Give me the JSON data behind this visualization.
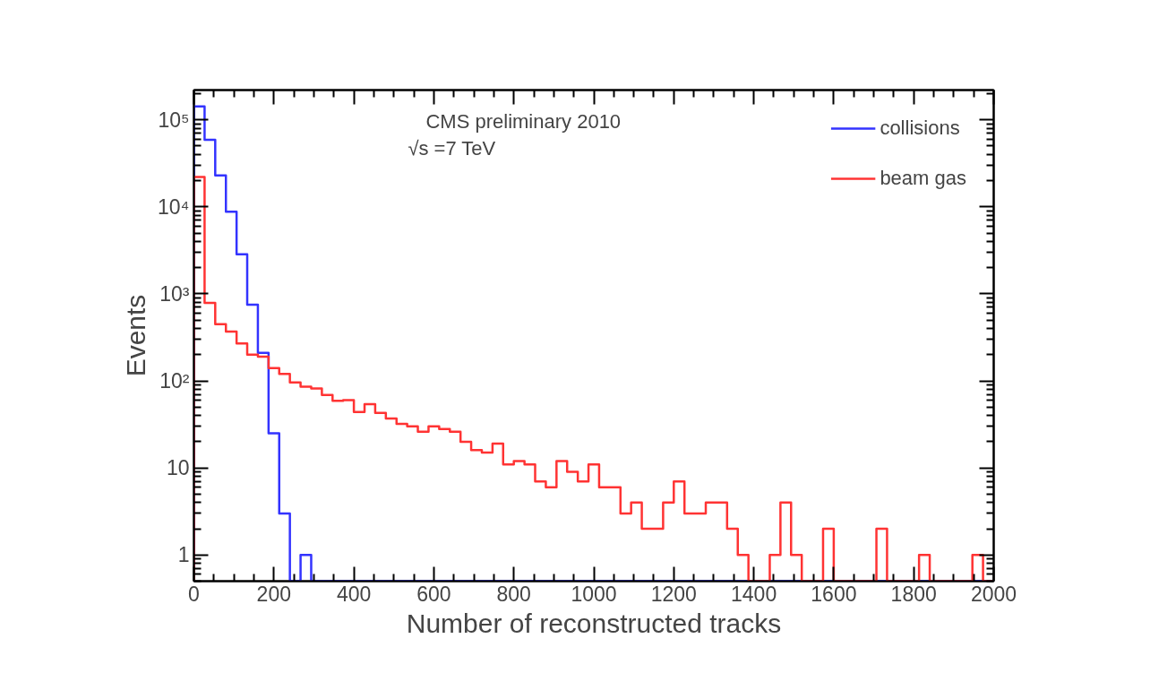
{
  "chart_data": {
    "type": "histogram",
    "xlabel": "Number of reconstructed tracks",
    "ylabel": "Events",
    "annotations": [
      "CMS preliminary 2010",
      "√s =7 TeV"
    ],
    "bins": [
      0,
      26.7,
      53.3,
      80,
      106.7,
      133.3,
      160,
      186.7,
      213.3,
      240,
      266.7,
      293.3,
      320,
      346.7,
      373.3,
      400,
      426.7,
      453.3,
      480,
      506.7,
      533.3,
      560,
      586.7,
      613.3,
      640,
      666.7,
      693.3,
      720,
      746.7,
      773.3,
      800,
      826.7,
      853.3,
      880,
      906.7,
      933.3,
      960,
      986.7,
      1013.3,
      1040,
      1066.7,
      1093.3,
      1120,
      1146.7,
      1173.3,
      1200,
      1226.7,
      1253.3,
      1280,
      1306.7,
      1333.3,
      1360,
      1386.7,
      1413.3,
      1440,
      1466.7,
      1493.3,
      1520,
      1546.7,
      1573.3,
      1600,
      1626.7,
      1653.3,
      1680,
      1706.7,
      1733.3,
      1760,
      1786.7,
      1813.3,
      1840,
      1866.7,
      1893.3,
      1920,
      1946.7,
      1973.3,
      2000
    ],
    "series": [
      {
        "name": "collisions",
        "color": "#3333ff",
        "values": [
          143000,
          59000,
          23000,
          8800,
          2850,
          750,
          210,
          25,
          3,
          null,
          1,
          null,
          null,
          null,
          null,
          null,
          null,
          null,
          null,
          null,
          null,
          null,
          null,
          null,
          null,
          null,
          null,
          null,
          null,
          null,
          null,
          null,
          null,
          null,
          null,
          null,
          null,
          null,
          null,
          null,
          null,
          null,
          null,
          null,
          null,
          null,
          null,
          null,
          null,
          null,
          null,
          null,
          null,
          null,
          null,
          null,
          null,
          null,
          null,
          null,
          null,
          null,
          null,
          null,
          null,
          null,
          null,
          null,
          null,
          null,
          null,
          null,
          null,
          null,
          null
        ]
      },
      {
        "name": "beam gas",
        "color": "#ff3333",
        "values": [
          22000,
          790,
          450,
          370,
          270,
          200,
          190,
          140,
          120,
          96,
          86,
          82,
          69,
          59,
          60,
          44,
          54,
          43,
          37,
          32,
          30,
          26,
          30,
          28,
          26,
          20,
          16,
          15,
          19,
          11,
          12,
          11,
          7,
          6,
          12,
          9,
          7,
          11,
          6,
          6,
          3,
          4,
          2,
          2,
          4,
          7,
          3,
          3,
          4,
          4,
          2,
          1,
          null,
          null,
          1,
          4,
          1,
          null,
          null,
          2,
          null,
          null,
          null,
          null,
          2,
          null,
          null,
          null,
          1,
          null,
          null,
          null,
          null,
          1,
          null
        ]
      }
    ],
    "xlim": [
      0,
      2000
    ],
    "xticks": [
      0,
      200,
      400,
      600,
      800,
      1000,
      1200,
      1400,
      1600,
      1800,
      2000
    ],
    "ylim": [
      0.5,
      220000
    ],
    "yticks": [
      1,
      10,
      {
        "value": 100,
        "label": "10²"
      },
      {
        "value": 1000,
        "label": "10³"
      },
      {
        "value": 10000,
        "label": "10⁴"
      },
      {
        "value": 100000,
        "label": "10⁵"
      }
    ],
    "log": true,
    "legend": "top right"
  }
}
